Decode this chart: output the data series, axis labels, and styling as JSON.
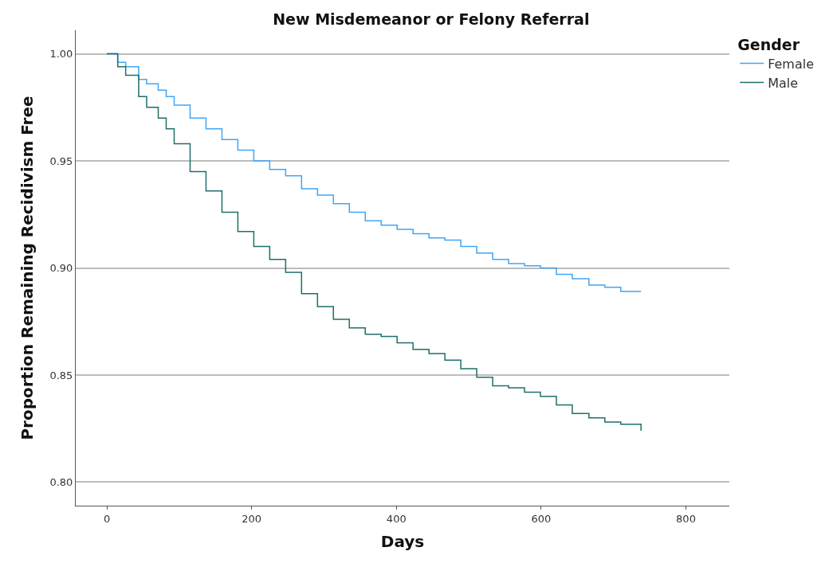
{
  "chart_data": {
    "type": "step",
    "title": "New Misdemeanor or Felony Referral",
    "xlabel": "Days",
    "ylabel": "Proportion Remaining Recidivism Free",
    "legend_title": "Gender",
    "legend": "top right",
    "grid": "y",
    "xlim": [
      -43,
      860
    ],
    "xticks": [
      0,
      200,
      400,
      600,
      800
    ],
    "ylim": [
      0.789,
      1.011
    ],
    "yticks": [
      {
        "value": 0.8,
        "label": "0.80"
      },
      {
        "value": 0.85,
        "label": "0.85"
      },
      {
        "value": 0.9,
        "label": "0.90"
      },
      {
        "value": 0.95,
        "label": "0.95"
      },
      {
        "value": 1.0,
        "label": "1.00"
      }
    ],
    "series": [
      {
        "name": "Female",
        "color": "#42a5f5",
        "x": [
          0,
          15,
          26,
          44,
          55,
          71,
          82,
          93,
          115,
          137,
          159,
          181,
          203,
          225,
          247,
          269,
          291,
          313,
          335,
          357,
          379,
          401,
          423,
          445,
          467,
          489,
          511,
          533,
          555,
          577,
          599,
          621,
          643,
          666,
          688,
          710,
          738
        ],
        "values": [
          1.0,
          0.996,
          0.994,
          0.988,
          0.986,
          0.983,
          0.98,
          0.976,
          0.97,
          0.965,
          0.96,
          0.955,
          0.95,
          0.946,
          0.943,
          0.937,
          0.934,
          0.93,
          0.926,
          0.922,
          0.92,
          0.918,
          0.916,
          0.914,
          0.913,
          0.91,
          0.907,
          0.904,
          0.902,
          0.901,
          0.9,
          0.897,
          0.895,
          0.892,
          0.891,
          0.889,
          0.889
        ]
      },
      {
        "name": "Male",
        "color": "#1f6f6a",
        "x": [
          0,
          15,
          26,
          44,
          55,
          71,
          82,
          93,
          115,
          137,
          159,
          181,
          203,
          225,
          247,
          269,
          291,
          313,
          335,
          357,
          379,
          401,
          423,
          445,
          467,
          489,
          511,
          533,
          555,
          577,
          599,
          621,
          643,
          666,
          688,
          710,
          738
        ],
        "values": [
          1.0,
          0.994,
          0.99,
          0.98,
          0.975,
          0.97,
          0.965,
          0.958,
          0.945,
          0.936,
          0.926,
          0.917,
          0.91,
          0.904,
          0.898,
          0.888,
          0.882,
          0.876,
          0.872,
          0.869,
          0.868,
          0.865,
          0.862,
          0.86,
          0.857,
          0.853,
          0.849,
          0.845,
          0.844,
          0.842,
          0.84,
          0.836,
          0.832,
          0.83,
          0.828,
          0.827,
          0.824
        ]
      }
    ]
  }
}
